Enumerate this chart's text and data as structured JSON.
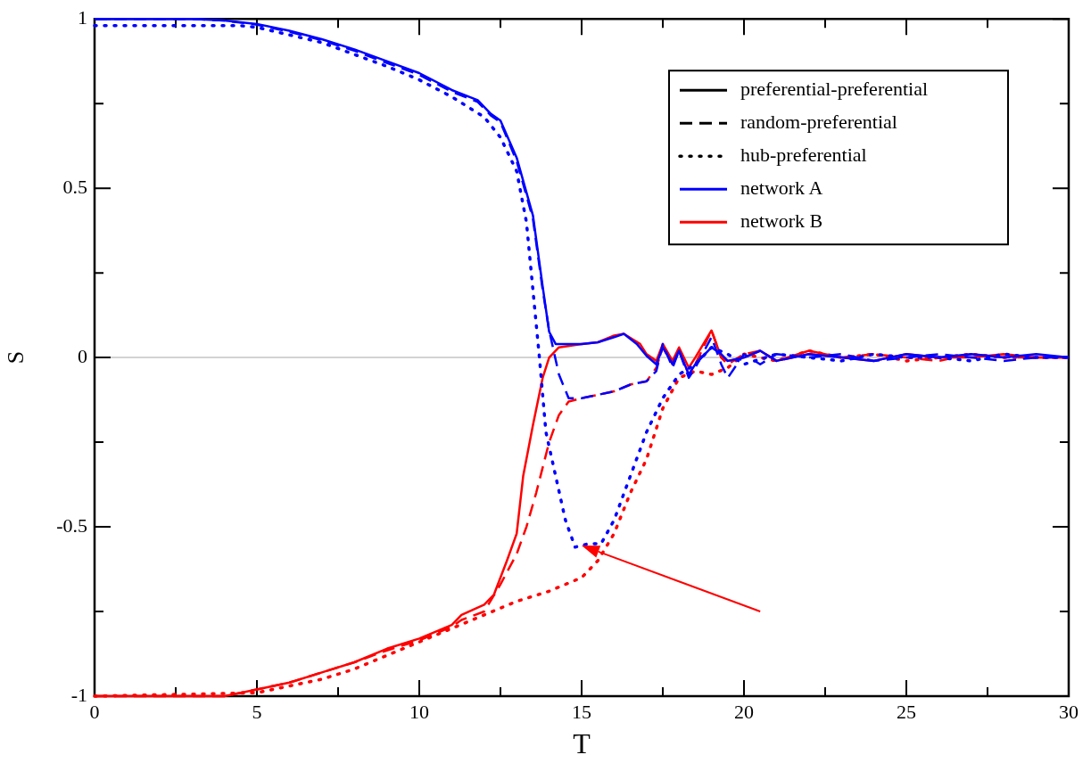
{
  "chart_data": {
    "type": "line",
    "xlabel": "T",
    "ylabel": "S",
    "xlim": [
      0,
      30
    ],
    "ylim": [
      -1,
      1
    ],
    "xticks": [
      0,
      {
        "value": 2.5,
        "label": null
      },
      5,
      {
        "value": 7.5,
        "label": null
      },
      10,
      {
        "value": 12.5,
        "label": null
      },
      15,
      {
        "value": 17.5,
        "label": null
      },
      20,
      {
        "value": 22.5,
        "label": null
      },
      25,
      {
        "value": 27.5,
        "label": null
      },
      30
    ],
    "yticks": [
      -1,
      {
        "value": -0.75,
        "label": null
      },
      -0.5,
      {
        "value": -0.25,
        "label": null
      },
      0,
      {
        "value": 0.25,
        "label": null
      },
      0.5,
      {
        "value": 0.75,
        "label": null
      },
      1
    ],
    "grid": false,
    "legend": "top right",
    "marker": "none",
    "ref_lines": [
      {
        "axis": "y",
        "value": 0,
        "color": "#d3d3d3"
      }
    ],
    "series": [
      {
        "name": "preferential-preferential",
        "color": "#000000",
        "line_style": "solid"
      },
      {
        "name": "random-preferential",
        "color": "#000000",
        "line_style": "dashed"
      },
      {
        "name": "hub-preferential",
        "color": "#000000",
        "line_style": "dotted"
      },
      {
        "name": "network A",
        "color": "#0000ff",
        "line_style": "solid"
      },
      {
        "name": "network B",
        "color": "#ff0000",
        "line_style": "solid"
      },
      {
        "color": "#0000ff",
        "line_style": "solid",
        "x": [
          0,
          3,
          4,
          5,
          6,
          7,
          8,
          9,
          10,
          11,
          11.8,
          12.2,
          12.5,
          13,
          13.5,
          13.8,
          14,
          14.2,
          15,
          15.5,
          16,
          16.3,
          16.7,
          17,
          17.3,
          17.5,
          17.8,
          18,
          18.3,
          18.5,
          19,
          19.3,
          19.5,
          20,
          20.5,
          21,
          22,
          23,
          24,
          25,
          26,
          27,
          28,
          29,
          30
        ],
        "values": [
          1,
          1,
          0.995,
          0.985,
          0.965,
          0.94,
          0.91,
          0.875,
          0.84,
          0.79,
          0.76,
          0.72,
          0.7,
          0.59,
          0.42,
          0.21,
          0.076,
          0.04,
          0.04,
          0.045,
          0.06,
          0.07,
          0.04,
          0.005,
          -0.02,
          0.03,
          -0.02,
          0.02,
          -0.05,
          -0.02,
          0.03,
          0.01,
          -0.01,
          0.0,
          0.02,
          -0.01,
          0.01,
          0.0,
          -0.01,
          0.01,
          0.0,
          0.01,
          0.0,
          0.01,
          0.0
        ]
      },
      {
        "color": "#0000ff",
        "line_style": "dashed",
        "x": [
          0,
          3,
          4,
          5,
          6,
          7,
          8,
          9,
          10,
          11,
          11.8,
          12.2,
          12.5,
          13,
          13.5,
          13.8,
          14,
          14.3,
          14.6,
          15,
          16,
          16.5,
          17,
          17.3,
          17.5,
          17.8,
          18,
          18.3,
          18.5,
          19,
          19.3,
          19.5,
          20,
          20.5,
          21,
          22,
          23,
          24,
          25,
          26,
          27,
          28,
          29,
          30
        ],
        "values": [
          1,
          1,
          0.995,
          0.983,
          0.962,
          0.937,
          0.906,
          0.87,
          0.835,
          0.785,
          0.755,
          0.715,
          0.695,
          0.58,
          0.41,
          0.2,
          0.08,
          -0.05,
          -0.12,
          -0.12,
          -0.1,
          -0.08,
          -0.07,
          -0.04,
          0.04,
          -0.03,
          0.02,
          -0.06,
          -0.03,
          0.06,
          -0.02,
          -0.06,
          0.01,
          -0.02,
          0.01,
          0.0,
          0.01,
          -0.01,
          0.0,
          0.01,
          0.0,
          -0.01,
          0.0,
          0.0
        ]
      },
      {
        "color": "#0000ff",
        "line_style": "dotted",
        "x": [
          0,
          3,
          4.5,
          5,
          7,
          9,
          10,
          11,
          12,
          12.5,
          13,
          13.3,
          13.6,
          13.7,
          13.9,
          14.2,
          14.5,
          14.8,
          15.2,
          15.6,
          16,
          16.5,
          17,
          17.5,
          18,
          18.5,
          19,
          19.5,
          20,
          21,
          22,
          23,
          24,
          25,
          26,
          27,
          28,
          29,
          30
        ],
        "values": [
          0.98,
          0.98,
          0.98,
          0.975,
          0.93,
          0.86,
          0.82,
          0.77,
          0.71,
          0.65,
          0.55,
          0.4,
          0.1,
          0,
          -0.22,
          -0.35,
          -0.48,
          -0.56,
          -0.55,
          -0.55,
          -0.48,
          -0.35,
          -0.22,
          -0.12,
          -0.05,
          -0.02,
          0.03,
          0.01,
          -0.02,
          0.01,
          0.0,
          -0.01,
          0.01,
          0.0,
          0.0,
          -0.01,
          0.01,
          0.0,
          0.0
        ]
      },
      {
        "color": "#ff0000",
        "line_style": "solid",
        "x": [
          0,
          4,
          5,
          6,
          7,
          8,
          9,
          10,
          11,
          11.3,
          12,
          12.3,
          12.7,
          13,
          13.2,
          13.5,
          13.8,
          14,
          14.3,
          15,
          15.5,
          16,
          16.3,
          16.8,
          17,
          17.3,
          17.5,
          17.8,
          18,
          18.3,
          18.5,
          19,
          19.3,
          19.5,
          20,
          20.5,
          21,
          22,
          23,
          24,
          25,
          26,
          27,
          28,
          29,
          30
        ],
        "values": [
          -1,
          -1,
          -0.98,
          -0.96,
          -0.93,
          -0.9,
          -0.86,
          -0.83,
          -0.79,
          -0.76,
          -0.73,
          -0.7,
          -0.6,
          -0.52,
          -0.35,
          -0.2,
          -0.06,
          0,
          0.03,
          0.04,
          0.045,
          0.065,
          0.07,
          0.04,
          0.01,
          -0.01,
          0.04,
          -0.01,
          0.03,
          -0.03,
          0.0,
          0.08,
          0.0,
          -0.01,
          0.0,
          0.02,
          -0.01,
          0.02,
          0.0,
          -0.01,
          0.01,
          0.0,
          0.0,
          0.01,
          0.0,
          0.0
        ]
      },
      {
        "color": "#ff0000",
        "line_style": "dashed",
        "x": [
          0,
          4,
          5,
          6,
          7,
          8,
          9,
          10,
          11,
          11.3,
          12,
          12.5,
          13,
          13.3,
          13.6,
          14,
          14.3,
          14.6,
          15,
          16,
          16.5,
          17,
          17.3,
          17.5,
          17.8,
          18,
          18.3,
          18.5,
          19,
          19.3,
          19.5,
          20,
          20.5,
          21,
          22,
          23,
          24,
          25,
          26,
          27,
          28,
          29,
          30
        ],
        "values": [
          -1,
          -1,
          -0.98,
          -0.96,
          -0.93,
          -0.9,
          -0.865,
          -0.835,
          -0.795,
          -0.775,
          -0.75,
          -0.67,
          -0.58,
          -0.5,
          -0.4,
          -0.25,
          -0.17,
          -0.13,
          -0.12,
          -0.1,
          -0.08,
          -0.07,
          -0.03,
          0.03,
          -0.02,
          0.02,
          -0.05,
          -0.02,
          0.08,
          0.0,
          -0.02,
          0.01,
          0.02,
          -0.01,
          0.01,
          0.0,
          0.01,
          0.0,
          -0.01,
          0.01,
          0.0,
          0.0,
          0.0
        ]
      },
      {
        "color": "#ff0000",
        "line_style": "dotted",
        "x": [
          0,
          5,
          6,
          7,
          8,
          9,
          10,
          11,
          12,
          13,
          14,
          15,
          15.5,
          16,
          16.5,
          17,
          17.5,
          18,
          18.5,
          19,
          19.5,
          20,
          21,
          22,
          23,
          24,
          25,
          26,
          27,
          28,
          29,
          30
        ],
        "values": [
          -1,
          -0.99,
          -0.97,
          -0.95,
          -0.92,
          -0.88,
          -0.84,
          -0.8,
          -0.76,
          -0.72,
          -0.69,
          -0.65,
          -0.6,
          -0.52,
          -0.4,
          -0.3,
          -0.15,
          -0.06,
          -0.04,
          -0.05,
          -0.03,
          0.01,
          -0.01,
          0.02,
          0.0,
          0.01,
          -0.01,
          0.0,
          0.01,
          0.0,
          0.0,
          0.0
        ]
      }
    ]
  }
}
